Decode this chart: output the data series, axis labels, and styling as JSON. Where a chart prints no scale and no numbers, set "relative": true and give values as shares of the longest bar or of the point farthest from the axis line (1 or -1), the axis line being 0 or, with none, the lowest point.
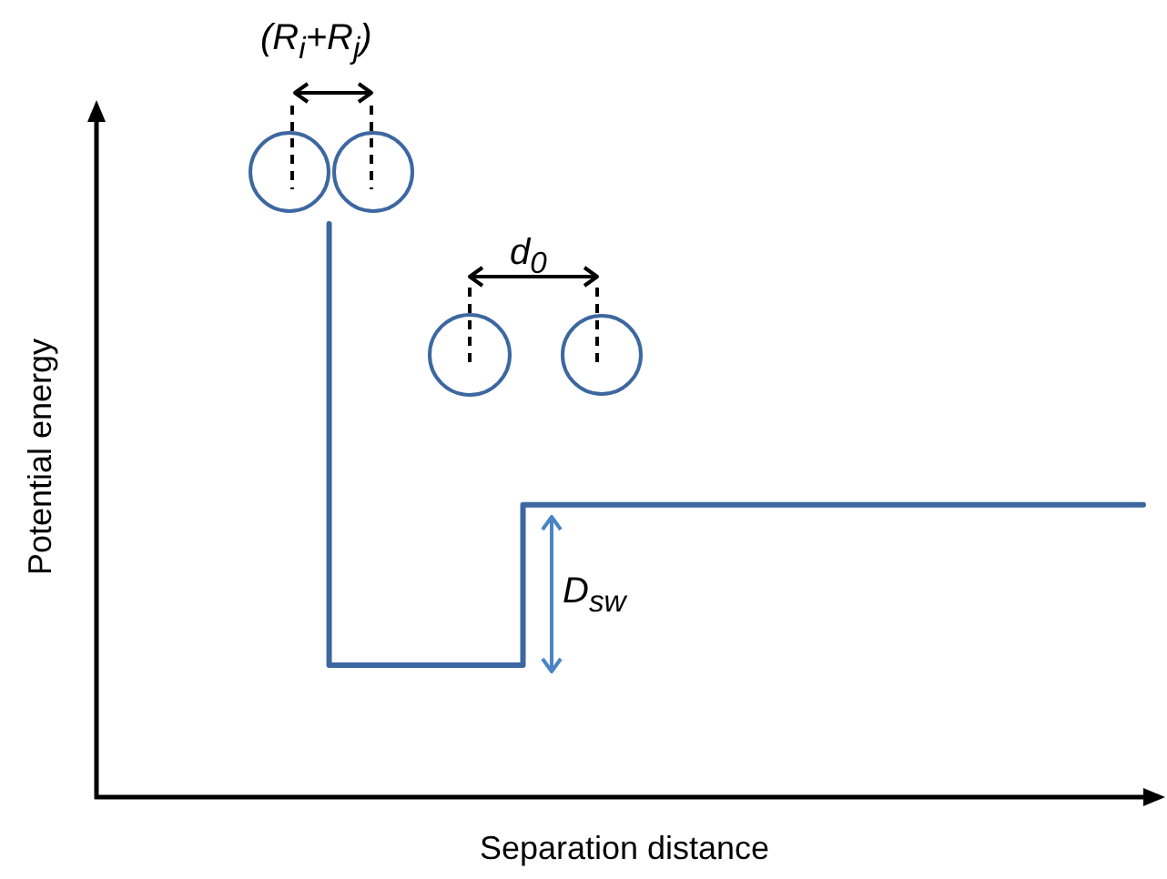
{
  "chart_data": {
    "type": "step",
    "xlabel": "Separation distance",
    "ylabel": "Potential energy",
    "relative": true,
    "categories": [
      null,
      null,
      null,
      null,
      null,
      null,
      null,
      null,
      null,
      null,
      null,
      null,
      null,
      null,
      null,
      null,
      null,
      null,
      null,
      null,
      null,
      null,
      null,
      null,
      null,
      null,
      null,
      null
    ],
    "values": [
      null,
      null,
      null,
      null,
      null,
      null,
      1,
      0.23,
      0.23,
      0.23,
      0.23,
      0.23,
      0.51,
      0.51,
      0.51,
      0.51,
      0.51,
      0.51,
      0.51,
      0.51,
      0.51,
      0.51,
      0.51,
      0.51,
      0.51,
      0.51,
      0.51,
      0.51
    ],
    "color": "#3d67a0",
    "annotations": [
      "(R$_{i}$+R$_{j}$)",
      "d$_{0}$",
      "D$_{sw}$"
    ]
  }
}
